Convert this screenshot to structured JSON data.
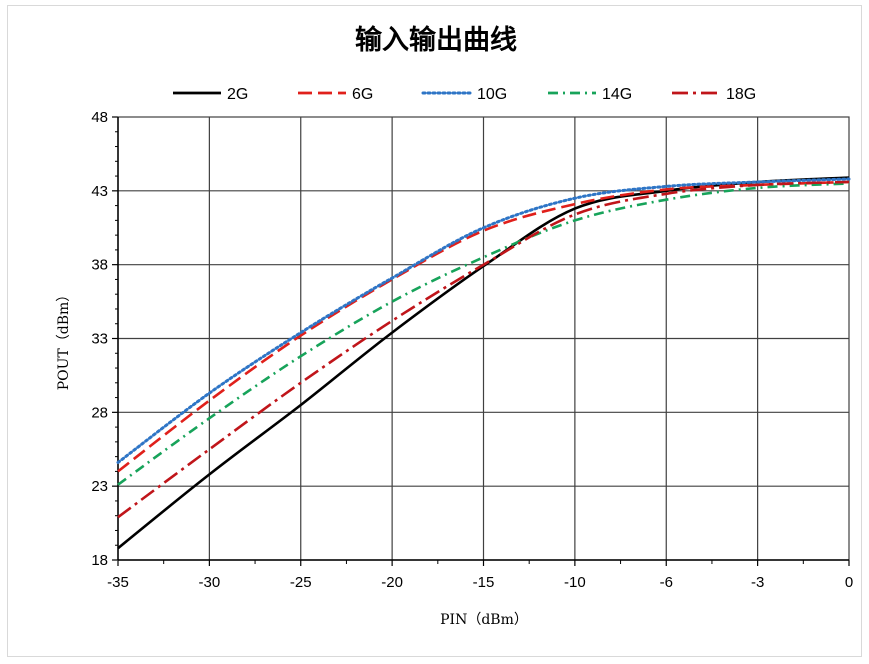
{
  "chart_data": {
    "type": "line",
    "title": "输入输出曲线",
    "xlabel": "PIN（dBm）",
    "ylabel": "POUT（dBm）",
    "xlim": [
      -35,
      0
    ],
    "ylim": [
      18,
      48
    ],
    "x_ticks": [
      -35,
      -30,
      -25,
      -20,
      -15,
      -10,
      -6,
      -3,
      0
    ],
    "x_tick_labels": [
      "-35",
      "-30",
      "-25",
      "-20",
      "-15",
      "-10",
      "-6",
      "-3",
      "0"
    ],
    "y_ticks": [
      18,
      23,
      28,
      33,
      38,
      43,
      48
    ],
    "y_tick_labels": [
      "18",
      "23",
      "28",
      "33",
      "38",
      "43",
      "48"
    ],
    "x_axis_note": "tick labels are evenly spaced (categorical-style axis)",
    "grid": true,
    "legend_position": "top",
    "series": [
      {
        "name": "2G",
        "color": "#000000",
        "dash": "solid",
        "x": [
          -35,
          -30,
          -25,
          -20,
          -15,
          -10,
          -6,
          -3,
          0
        ],
        "y": [
          18.8,
          23.8,
          28.5,
          33.4,
          37.9,
          41.8,
          43.0,
          43.6,
          43.9
        ]
      },
      {
        "name": "6G",
        "color": "#e0201b",
        "dash": "dash",
        "x": [
          -35,
          -30,
          -25,
          -20,
          -15,
          -10,
          -6,
          -3,
          0
        ],
        "y": [
          24.0,
          28.8,
          33.2,
          37.0,
          40.3,
          42.1,
          43.1,
          43.4,
          43.6
        ]
      },
      {
        "name": "10G",
        "color": "#2e75c6",
        "dash": "dot",
        "x": [
          -35,
          -30,
          -25,
          -20,
          -15,
          -10,
          -6,
          -3,
          0
        ],
        "y": [
          24.6,
          29.3,
          33.4,
          37.1,
          40.5,
          42.5,
          43.3,
          43.6,
          43.8
        ]
      },
      {
        "name": "14G",
        "color": "#17a35a",
        "dash": "dashdot",
        "x": [
          -35,
          -30,
          -25,
          -20,
          -15,
          -10,
          -6,
          -3,
          0
        ],
        "y": [
          23.1,
          27.6,
          31.8,
          35.5,
          38.5,
          41.0,
          42.4,
          43.2,
          43.5
        ]
      },
      {
        "name": "18G",
        "color": "#c0151a",
        "dash": "dashdotlong",
        "x": [
          -35,
          -30,
          -25,
          -20,
          -15,
          -10,
          -6,
          -3,
          0
        ],
        "y": [
          20.9,
          25.5,
          30.0,
          34.2,
          38.0,
          41.4,
          42.8,
          43.4,
          43.6
        ]
      }
    ]
  }
}
